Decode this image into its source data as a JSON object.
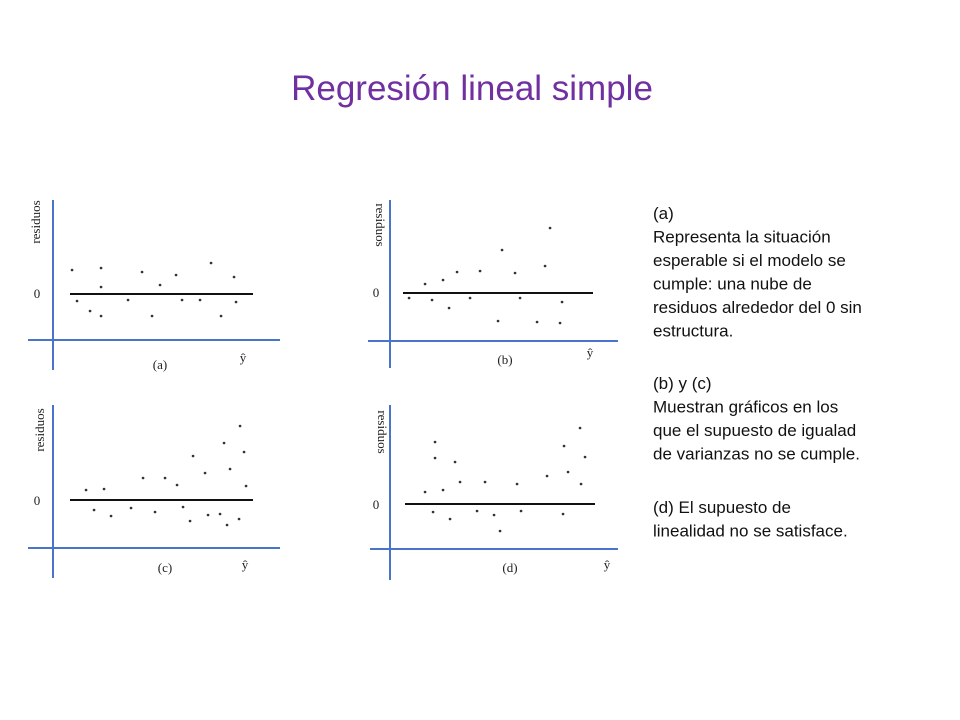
{
  "title": "Regresión lineal simple",
  "plots": [
    {
      "label": "(a)",
      "y_label": "residuos",
      "zero": "0",
      "x_label": "ŷ"
    },
    {
      "label": "(b)",
      "y_label": "residuos",
      "zero": "0",
      "x_label": "ŷ"
    },
    {
      "label": "(c)",
      "y_label": "residuos",
      "zero": "0",
      "x_label": "ŷ"
    },
    {
      "label": "(d)",
      "y_label": "residuos",
      "zero": "0",
      "x_label": "ŷ"
    }
  ],
  "notes": [
    {
      "lines": [
        "(a)",
        "Representa la situación",
        "esperable si el modelo se",
        "cumple: una nube de",
        "residuos alrededor del 0 sin",
        "estructura."
      ]
    },
    {
      "lines": [
        "(b) y (c)",
        " Muestran gráficos en los",
        "que el supuesto de igualad",
        "de varianzas no se cumple."
      ]
    },
    {
      "lines": [
        "(d) El supuesto de",
        "linealidad no se satisface."
      ]
    }
  ]
}
